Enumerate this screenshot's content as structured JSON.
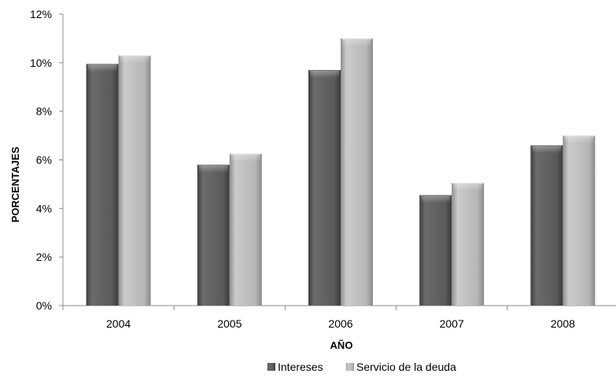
{
  "chart_data": {
    "type": "bar",
    "title": "",
    "xlabel": "AÑO",
    "ylabel": "PORCENTAJES",
    "categories": [
      "2004",
      "2005",
      "2006",
      "2007",
      "2008"
    ],
    "series": [
      {
        "name": "Intereses",
        "values": [
          9.95,
          5.8,
          9.7,
          4.55,
          6.6
        ],
        "color": "#5a5a5a"
      },
      {
        "name": "Servicio de la deuda",
        "values": [
          10.3,
          6.25,
          11.0,
          5.05,
          7.0
        ],
        "color": "#b4b4b4"
      }
    ],
    "ylim": [
      0,
      12
    ],
    "y_ticks": [
      0,
      2,
      4,
      6,
      8,
      10,
      12
    ],
    "y_tick_labels": [
      "0%",
      "2%",
      "4%",
      "6%",
      "8%",
      "10%",
      "12%"
    ],
    "grid": false,
    "legend_position": "bottom",
    "style": "3d-beveled"
  }
}
